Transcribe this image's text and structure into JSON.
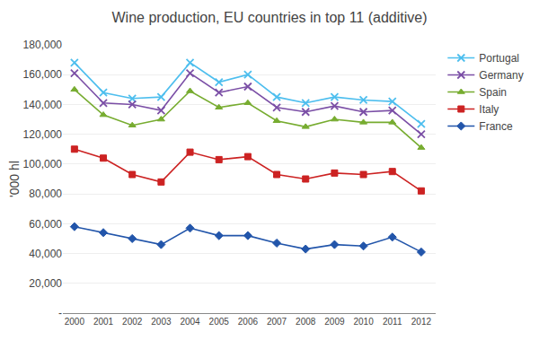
{
  "chart_data": {
    "type": "line",
    "title": "Wine production, EU countries in top 11 (additive)",
    "ylabel": "'000 hl",
    "x": [
      2000,
      2001,
      2002,
      2003,
      2004,
      2005,
      2006,
      2007,
      2008,
      2009,
      2010,
      2011,
      2012
    ],
    "series": [
      {
        "name": "Portugal",
        "color": "#4DBEEE",
        "marker": "x",
        "values": [
          168000,
          148000,
          144000,
          145000,
          168000,
          155000,
          160000,
          145000,
          141000,
          145000,
          143000,
          142000,
          127000
        ]
      },
      {
        "name": "Germany",
        "color": "#7B4FA6",
        "marker": "x",
        "values": [
          161000,
          141000,
          140000,
          136000,
          161000,
          148000,
          152000,
          138000,
          135000,
          139000,
          135000,
          136000,
          120000
        ]
      },
      {
        "name": "Spain",
        "color": "#77AC30",
        "marker": "triangle",
        "values": [
          150000,
          133000,
          126000,
          130000,
          149000,
          138000,
          141000,
          129000,
          125000,
          130000,
          128000,
          128000,
          111000
        ]
      },
      {
        "name": "Italy",
        "color": "#CC2222",
        "marker": "square",
        "values": [
          110000,
          104000,
          93000,
          88000,
          108000,
          103000,
          105000,
          93000,
          90000,
          94000,
          93000,
          95000,
          82000
        ]
      },
      {
        "name": "France",
        "color": "#2255AA",
        "marker": "diamond",
        "values": [
          58000,
          54000,
          50000,
          46000,
          57000,
          52000,
          52000,
          47000,
          43000,
          46000,
          45000,
          51000,
          41000
        ]
      }
    ],
    "xlim": [
      1999.6,
      2012.5
    ],
    "xticks": [
      2000,
      2001,
      2002,
      2003,
      2004,
      2005,
      2006,
      2007,
      2008,
      2009,
      2010,
      2011,
      2012
    ],
    "ylim": [
      0,
      180000
    ],
    "yticks": [
      {
        "value": 0,
        "label": "-"
      },
      {
        "value": 20000,
        "label": "20,000"
      },
      {
        "value": 40000,
        "label": "40,000"
      },
      {
        "value": 60000,
        "label": "60,000"
      },
      {
        "value": 80000,
        "label": "80,000"
      },
      {
        "value": 100000,
        "label": "100,000"
      },
      {
        "value": 120000,
        "label": "120,000"
      },
      {
        "value": 140000,
        "label": "140,000"
      },
      {
        "value": 160000,
        "label": "160,000"
      },
      {
        "value": 180000,
        "label": "180,000"
      }
    ],
    "grid": "y",
    "legend": "right"
  }
}
